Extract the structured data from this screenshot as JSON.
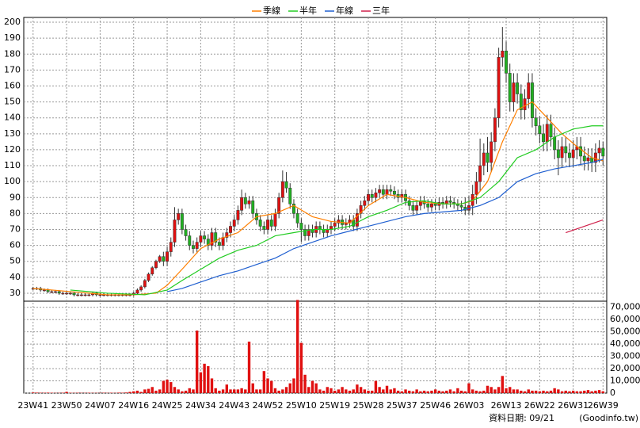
{
  "chart_data": {
    "type": "candlestick",
    "xlim": [
      -2.5,
      154
    ],
    "xticks": [
      {
        "value": 0,
        "label": "23W41"
      },
      {
        "value": 9,
        "label": "23W50"
      },
      {
        "value": 18,
        "label": "24W07"
      },
      {
        "value": 27,
        "label": "24W16"
      },
      {
        "value": 36,
        "label": "24W25"
      },
      {
        "value": 45,
        "label": "24W34"
      },
      {
        "value": 54,
        "label": "24W43"
      },
      {
        "value": 63,
        "label": "24W52"
      },
      {
        "value": 72,
        "label": "25W10"
      },
      {
        "value": 81,
        "label": "25W19"
      },
      {
        "value": 90,
        "label": "25W28"
      },
      {
        "value": 99,
        "label": "25W37"
      },
      {
        "value": 108,
        "label": "25W46"
      },
      {
        "value": 117,
        "label": "26W03"
      },
      {
        "value": 127,
        "label": "26W13"
      },
      {
        "value": 136,
        "label": "26W22"
      },
      {
        "value": 145,
        "label": "26W31"
      },
      {
        "value": 153,
        "label": "26W39"
      }
    ],
    "ylim": [
      25,
      203
    ],
    "yticks": [
      30,
      40,
      50,
      60,
      70,
      80,
      90,
      100,
      110,
      120,
      130,
      140,
      150,
      160,
      170,
      180,
      190,
      200
    ],
    "y2lim": [
      0,
      75000
    ],
    "y2ticks": [
      0,
      {
        "value": 10000,
        "label": "10,000"
      },
      {
        "value": 20000,
        "label": "20,000"
      },
      {
        "value": 30000,
        "label": "30,000"
      },
      {
        "value": 40000,
        "label": "40,000"
      },
      {
        "value": 50000,
        "label": "50,000"
      },
      {
        "value": 60000,
        "label": "60,000"
      },
      {
        "value": 70000,
        "label": "70,000"
      }
    ],
    "grid": true,
    "up_color": "#e01010",
    "down_color": "#20b020",
    "volume_color": "#e01010",
    "open": [
      33,
      33,
      33,
      32,
      32,
      31,
      31,
      31,
      30,
      30,
      30,
      30,
      29,
      29,
      29,
      29,
      29,
      30,
      29,
      29,
      29,
      29,
      29,
      29,
      29,
      29,
      29,
      29,
      30,
      32,
      34,
      38,
      42,
      46,
      50,
      53,
      50,
      56,
      62,
      76,
      80,
      70,
      66,
      60,
      58,
      62,
      66,
      64,
      60,
      68,
      62,
      60,
      65,
      68,
      72,
      76,
      82,
      90,
      86,
      88,
      80,
      76,
      72,
      70,
      76,
      72,
      80,
      90,
      100,
      96,
      86,
      80,
      74,
      70,
      66,
      70,
      68,
      72,
      70,
      68,
      70,
      72,
      74,
      76,
      73,
      74,
      76,
      72,
      80,
      85,
      88,
      92,
      90,
      93,
      95,
      92,
      95,
      94,
      92,
      90,
      92,
      88,
      85,
      82,
      85,
      88,
      86,
      84,
      86,
      85,
      87,
      86,
      88,
      87,
      86,
      85,
      84,
      82,
      85,
      92,
      100,
      110,
      118,
      112,
      125,
      140,
      178,
      182,
      168,
      150,
      162,
      155,
      145,
      152,
      162,
      140,
      135,
      130,
      125,
      136,
      128,
      120,
      115,
      122,
      118,
      115,
      120,
      122,
      116,
      113,
      115,
      112,
      118,
      121
    ],
    "high": [
      34,
      34,
      34,
      33,
      33,
      32,
      32,
      32,
      31,
      31,
      31,
      31,
      30,
      30,
      30,
      30,
      31,
      31,
      30,
      30,
      30,
      30,
      30,
      30,
      30,
      30,
      30,
      31,
      33,
      35,
      39,
      43,
      47,
      51,
      54,
      56,
      59,
      65,
      84,
      83,
      83,
      73,
      69,
      63,
      65,
      69,
      69,
      67,
      71,
      71,
      65,
      68,
      71,
      75,
      79,
      85,
      95,
      93,
      91,
      91,
      83,
      79,
      75,
      79,
      79,
      83,
      93,
      107,
      106,
      99,
      89,
      83,
      77,
      73,
      73,
      73,
      75,
      75,
      73,
      73,
      75,
      77,
      79,
      79,
      77,
      79,
      79,
      83,
      88,
      91,
      95,
      95,
      96,
      98,
      98,
      98,
      98,
      97,
      95,
      95,
      95,
      91,
      88,
      88,
      91,
      91,
      89,
      89,
      89,
      90,
      90,
      91,
      91,
      90,
      89,
      88,
      90,
      91,
      98,
      106,
      127,
      124,
      128,
      131,
      146,
      184,
      197,
      188,
      174,
      168,
      168,
      161,
      158,
      168,
      168,
      146,
      141,
      136,
      142,
      142,
      134,
      126,
      128,
      128,
      124,
      126,
      128,
      128,
      122,
      121,
      121,
      124,
      126,
      125
    ],
    "low": [
      32,
      32,
      31,
      31,
      30,
      30,
      30,
      29,
      29,
      29,
      29,
      28,
      28,
      28,
      28,
      28,
      28,
      28,
      28,
      28,
      28,
      28,
      28,
      28,
      28,
      28,
      28,
      28,
      29,
      31,
      33,
      37,
      41,
      45,
      49,
      47,
      47,
      53,
      59,
      73,
      67,
      63,
      57,
      55,
      55,
      59,
      61,
      57,
      57,
      59,
      57,
      57,
      62,
      65,
      69,
      73,
      79,
      83,
      83,
      77,
      73,
      69,
      67,
      67,
      69,
      69,
      77,
      87,
      93,
      83,
      77,
      71,
      62,
      63,
      63,
      65,
      65,
      67,
      65,
      65,
      67,
      69,
      71,
      70,
      70,
      71,
      69,
      69,
      77,
      82,
      85,
      87,
      87,
      90,
      89,
      89,
      91,
      89,
      87,
      87,
      85,
      82,
      79,
      79,
      82,
      83,
      81,
      81,
      82,
      82,
      83,
      83,
      84,
      83,
      82,
      81,
      79,
      79,
      79,
      86,
      94,
      104,
      106,
      106,
      119,
      134,
      172,
      162,
      144,
      144,
      149,
      139,
      139,
      146,
      134,
      129,
      124,
      119,
      119,
      122,
      114,
      104,
      109,
      112,
      109,
      109,
      114,
      110,
      107,
      107,
      106,
      106,
      112,
      110
    ],
    "close": [
      33,
      33,
      32,
      32,
      31,
      31,
      31,
      30,
      30,
      30,
      30,
      29,
      29,
      29,
      29,
      29,
      30,
      29,
      29,
      29,
      29,
      29,
      29,
      29,
      29,
      29,
      29,
      30,
      32,
      34,
      38,
      42,
      46,
      50,
      53,
      50,
      56,
      62,
      76,
      80,
      70,
      66,
      60,
      58,
      62,
      66,
      64,
      60,
      68,
      62,
      60,
      65,
      68,
      72,
      76,
      82,
      90,
      86,
      88,
      80,
      76,
      72,
      70,
      76,
      72,
      80,
      90,
      100,
      96,
      86,
      80,
      74,
      70,
      66,
      70,
      68,
      72,
      70,
      68,
      70,
      72,
      74,
      76,
      73,
      74,
      76,
      72,
      80,
      85,
      88,
      92,
      90,
      93,
      95,
      92,
      95,
      94,
      92,
      90,
      92,
      88,
      85,
      82,
      85,
      88,
      86,
      84,
      86,
      85,
      87,
      86,
      88,
      87,
      86,
      85,
      84,
      82,
      85,
      92,
      100,
      110,
      118,
      112,
      125,
      140,
      178,
      182,
      168,
      150,
      162,
      155,
      145,
      152,
      162,
      140,
      135,
      130,
      125,
      136,
      128,
      120,
      115,
      122,
      118,
      115,
      120,
      122,
      116,
      113,
      115,
      112,
      118,
      121,
      116
    ],
    "volume": [
      500,
      400,
      300,
      300,
      400,
      300,
      200,
      200,
      300,
      1000,
      300,
      200,
      300,
      200,
      200,
      300,
      200,
      200,
      200,
      300,
      200,
      300,
      200,
      400,
      300,
      500,
      1000,
      1500,
      2000,
      1000,
      3000,
      3500,
      5000,
      2000,
      3000,
      10000,
      11000,
      9000,
      5000,
      3000,
      1500,
      2000,
      4000,
      3000,
      51000,
      17000,
      24000,
      22000,
      12000,
      4000,
      2000,
      3000,
      7000,
      3000,
      3000,
      3000,
      4000,
      3000,
      42000,
      8000,
      3000,
      3000,
      18000,
      12000,
      10000,
      4000,
      2000,
      3000,
      5000,
      8000,
      12000,
      76000,
      41000,
      15000,
      5000,
      10000,
      8000,
      3000,
      2000,
      5000,
      4000,
      2000,
      3000,
      5000,
      3000,
      2000,
      3000,
      7000,
      5000,
      3000,
      2000,
      2000,
      10000,
      5000,
      3000,
      6000,
      3000,
      4000,
      2000,
      1500,
      3000,
      2000,
      1500,
      3000,
      1500,
      2000,
      1500,
      2000,
      3000,
      2000,
      1500,
      2000,
      3000,
      1500,
      4000,
      2000,
      1500,
      8000,
      3000,
      2000,
      1500,
      2000,
      6000,
      5000,
      3000,
      5000,
      14000,
      4000,
      5000,
      3000,
      3000,
      2000,
      1500,
      3000,
      2000,
      2000,
      1500,
      2000,
      1500,
      2000,
      4000,
      3000,
      1500,
      2000,
      1500,
      2000,
      1500,
      1500,
      2000,
      2500,
      1500,
      2000,
      2500,
      1500
    ],
    "series": [
      {
        "name": "季線",
        "color": "#ff7f00",
        "x": [
          0,
          10,
          20,
          27,
          33,
          36,
          40,
          45,
          50,
          55,
          60,
          65,
          70,
          75,
          80,
          85,
          90,
          95,
          100,
          105,
          110,
          115,
          118,
          122,
          126,
          130,
          134,
          138,
          142,
          146,
          150,
          153
        ],
        "values": [
          33,
          31,
          29,
          29,
          30,
          35,
          45,
          58,
          64,
          68,
          78,
          80,
          85,
          78,
          75,
          74,
          85,
          92,
          90,
          87,
          86,
          86,
          88,
          100,
          125,
          145,
          150,
          140,
          130,
          122,
          115,
          113
        ]
      },
      {
        "name": "半年",
        "color": "#22cc22",
        "x": [
          10,
          20,
          30,
          36,
          40,
          45,
          50,
          55,
          60,
          65,
          70,
          75,
          80,
          85,
          90,
          95,
          100,
          105,
          110,
          115,
          120,
          125,
          130,
          135,
          140,
          145,
          150,
          153
        ],
        "values": [
          32,
          30,
          29,
          32,
          38,
          45,
          52,
          57,
          60,
          66,
          68,
          70,
          70,
          72,
          78,
          82,
          87,
          88,
          86,
          86,
          90,
          100,
          115,
          120,
          128,
          133,
          135,
          135
        ]
      },
      {
        "name": "年線",
        "color": "#1f5fd0",
        "x": [
          36,
          40,
          45,
          50,
          55,
          60,
          65,
          70,
          75,
          80,
          85,
          90,
          95,
          100,
          105,
          110,
          115,
          120,
          125,
          130,
          135,
          140,
          145,
          150,
          153
        ],
        "values": [
          31,
          33,
          37,
          41,
          44,
          48,
          52,
          58,
          62,
          66,
          69,
          72,
          75,
          78,
          80,
          81,
          82,
          85,
          90,
          100,
          105,
          108,
          110,
          112,
          114
        ]
      },
      {
        "name": "三年",
        "color": "#d0204a",
        "x": [
          143,
          153
        ],
        "values": [
          68,
          76
        ]
      }
    ],
    "annotations": [
      "資料日期: 09/21",
      "(Goodinfo.tw)"
    ]
  }
}
